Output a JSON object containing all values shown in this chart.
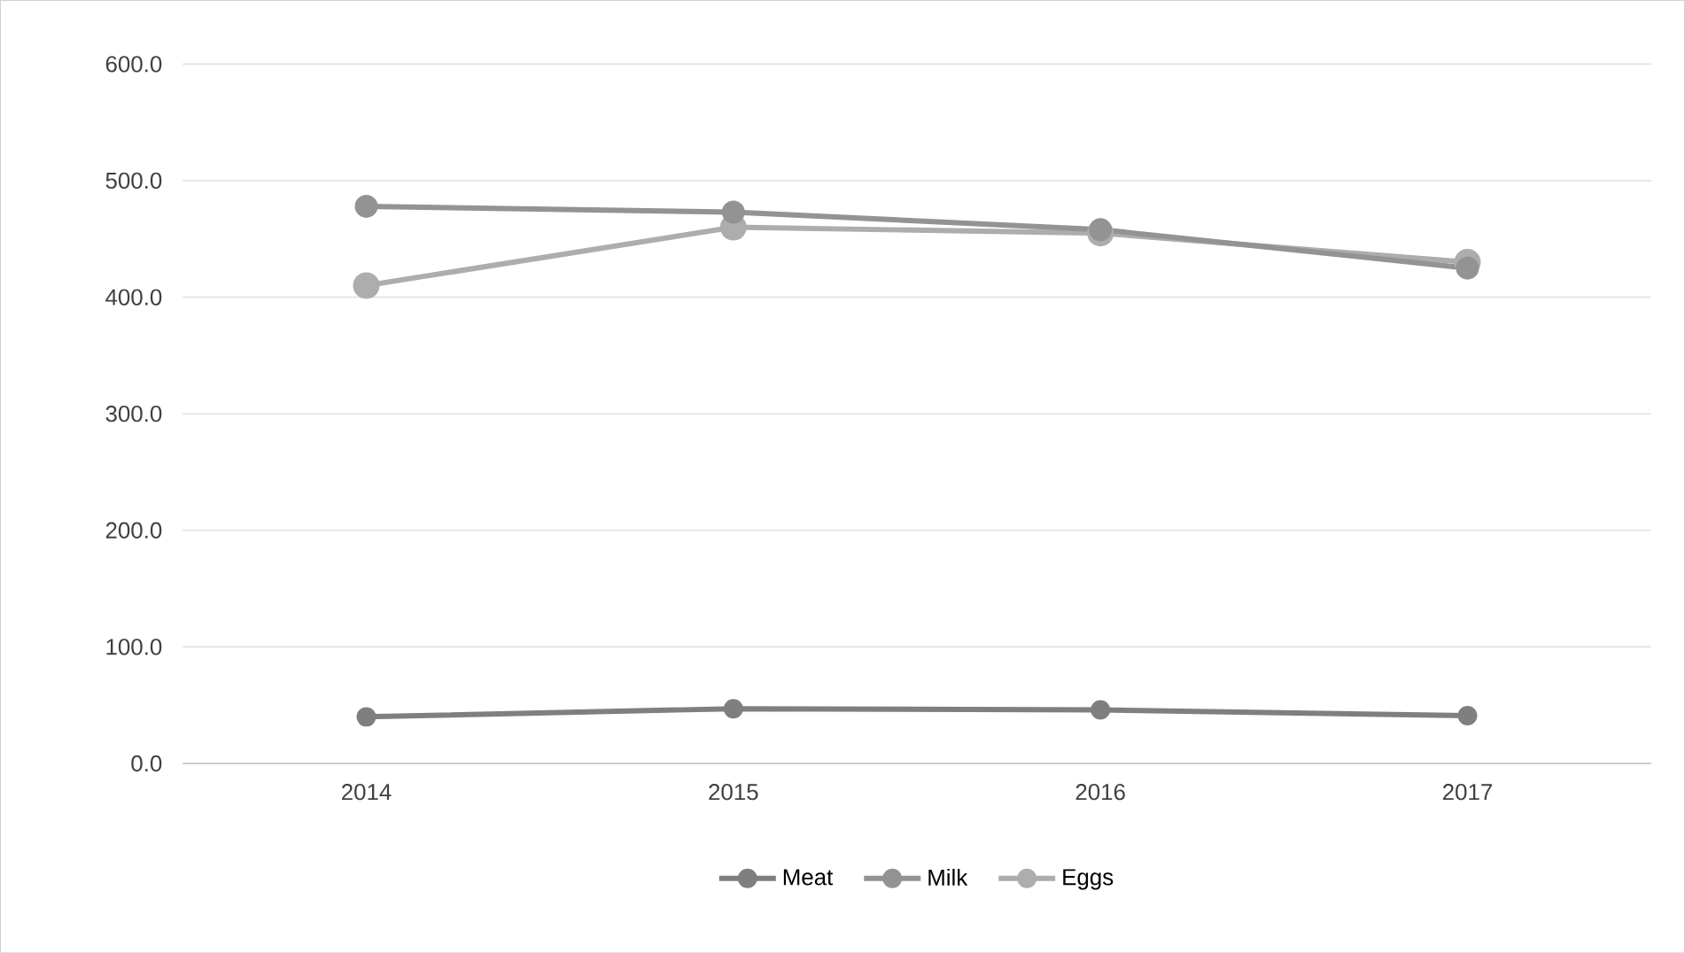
{
  "chart_data": {
    "type": "line",
    "categories": [
      "2014",
      "2015",
      "2016",
      "2017"
    ],
    "series": [
      {
        "name": "Meat",
        "color": "#7f7f7f",
        "values": [
          40,
          47,
          46,
          41
        ]
      },
      {
        "name": "Milk",
        "color": "#939393",
        "values": [
          478,
          473,
          458,
          425
        ]
      },
      {
        "name": "Eggs",
        "color": "#adadad",
        "values": [
          410,
          460,
          455,
          430
        ]
      }
    ],
    "ylim": [
      0,
      600
    ],
    "yticks": [
      {
        "value": 0,
        "label": "0.0"
      },
      {
        "value": 100,
        "label": "100.0"
      },
      {
        "value": 200,
        "label": "200.0"
      },
      {
        "value": 300,
        "label": "300.0"
      },
      {
        "value": 400,
        "label": "400.0"
      },
      {
        "value": 500,
        "label": "500.0"
      },
      {
        "value": 600,
        "label": "600.0"
      }
    ],
    "grid": "y",
    "legend": "bottom",
    "marker": "circle",
    "line_style": "solid"
  }
}
